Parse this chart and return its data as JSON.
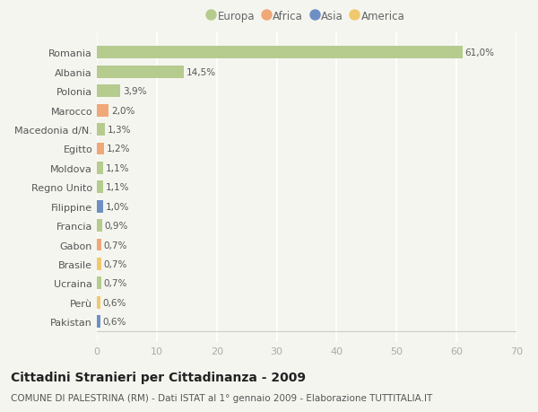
{
  "categories": [
    "Romania",
    "Albania",
    "Polonia",
    "Marocco",
    "Macedonia d/N.",
    "Egitto",
    "Moldova",
    "Regno Unito",
    "Filippine",
    "Francia",
    "Gabon",
    "Brasile",
    "Ucraina",
    "Perù",
    "Pakistan"
  ],
  "values": [
    61.0,
    14.5,
    3.9,
    2.0,
    1.3,
    1.2,
    1.1,
    1.1,
    1.0,
    0.9,
    0.7,
    0.7,
    0.7,
    0.6,
    0.6
  ],
  "labels": [
    "61,0%",
    "14,5%",
    "3,9%",
    "2,0%",
    "1,3%",
    "1,2%",
    "1,1%",
    "1,1%",
    "1,0%",
    "0,9%",
    "0,7%",
    "0,7%",
    "0,7%",
    "0,6%",
    "0,6%"
  ],
  "continents": [
    "Europa",
    "Europa",
    "Europa",
    "Africa",
    "Europa",
    "Africa",
    "Europa",
    "Europa",
    "Asia",
    "Europa",
    "Africa",
    "America",
    "Europa",
    "America",
    "Asia"
  ],
  "colors": {
    "Europa": "#b5cc8e",
    "Africa": "#f0a878",
    "Asia": "#6e8fc4",
    "America": "#f0c96e"
  },
  "xlim": [
    0,
    70
  ],
  "xticks": [
    0,
    10,
    20,
    30,
    40,
    50,
    60,
    70
  ],
  "background_color": "#f5f5f0",
  "grid_color": "#ffffff",
  "title": "Cittadini Stranieri per Cittadinanza - 2009",
  "subtitle": "COMUNE DI PALESTRINA (RM) - Dati ISTAT al 1° gennaio 2009 - Elaborazione TUTTITALIA.IT",
  "bar_height": 0.65,
  "value_fontsize": 7.5,
  "label_fontsize": 8,
  "tick_fontsize": 8,
  "title_fontsize": 10,
  "subtitle_fontsize": 7.5,
  "legend_items": [
    "Europa",
    "Africa",
    "Asia",
    "America"
  ]
}
